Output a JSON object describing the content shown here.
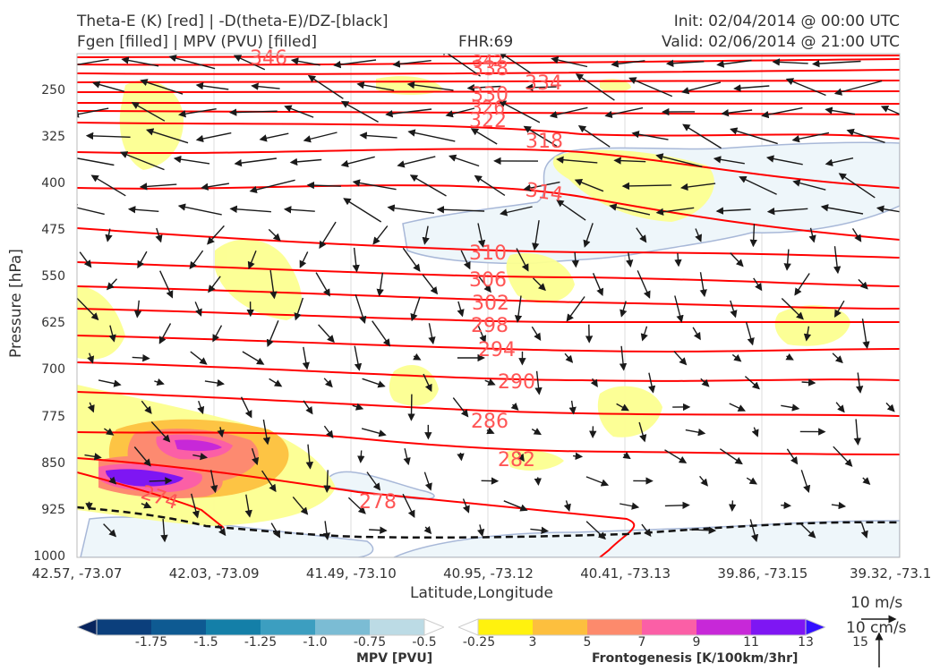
{
  "header": {
    "title_left_1": "Theta-E (K) [red] | -D(theta-E)/DZ-[black]",
    "title_left_2": "Fgen [filled] | MPV (PVU) [filled]",
    "fhr": "FHR:69",
    "init": "Init: 02/04/2014 @ 00:00 UTC",
    "valid": "Valid: 02/06/2014 @ 21:00 UTC"
  },
  "chart_data": {
    "type": "cross-section",
    "xlabel": "Latitude,Longitude",
    "ylabel": "Pressure [hPa]",
    "x_ticks": [
      "42.57, -73.07",
      "42.03, -73.09",
      "41.49, -73.10",
      "40.95, -73.12",
      "40.41, -73.13",
      "39.86, -73.15",
      "39.32, -73.1"
    ],
    "y_ticks": [
      250,
      325,
      400,
      475,
      550,
      625,
      700,
      775,
      850,
      925,
      1000
    ],
    "ylim": [
      1000,
      190
    ],
    "theta_e_contour_labels": [
      346,
      342,
      338,
      334,
      330,
      326,
      322,
      318,
      314,
      310,
      306,
      302,
      298,
      294,
      290,
      286,
      282,
      278,
      274
    ],
    "theta_e_color": "#ff0000",
    "label_color": "#ff5555",
    "dthetae_dz_line_color": "#000000"
  },
  "colorbars": {
    "mpv": {
      "title": "MPV [PVU]",
      "tick_labels": [
        "-1.75",
        "-1.5",
        "-1.25",
        "-1.0",
        "-0.75",
        "-0.5",
        "-0.25"
      ],
      "colors": [
        "#08255e",
        "#0b3f7c",
        "#0e5a92",
        "#147fa8",
        "#3c9ec0",
        "#7bbcd4",
        "#bcdbe5",
        "#ffffff"
      ]
    },
    "fgen": {
      "title": "Frontogenesis [K/100km/3hr]",
      "tick_labels": [
        "3",
        "5",
        "7",
        "9",
        "11",
        "13",
        "15"
      ],
      "colors": [
        "#ffffff",
        "#fff20e",
        "#fdbf3e",
        "#fd8a6c",
        "#fb5fa6",
        "#c728d8",
        "#7e16f3",
        "#3311ff"
      ]
    }
  },
  "vector_key": {
    "horizontal": "10 m/s",
    "vertical": "10 cm/s"
  }
}
